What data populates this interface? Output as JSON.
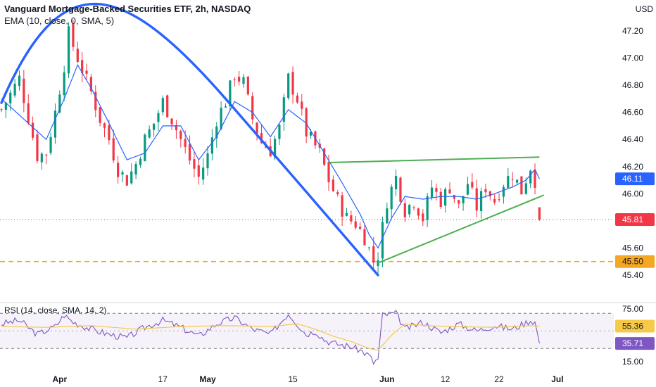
{
  "header": {
    "title": "Vanguard Mortgage-Backed Securities ETF, 2h, NASDAQ",
    "indicator": "EMA (10, close, 0, SMA, 5)",
    "currency": "USD",
    "rsi_label": "RSI (14, close, SMA, 14, 2)"
  },
  "colors": {
    "up": "#089981",
    "down": "#f23645",
    "ema": "#2962ff",
    "arc": "#2962ff",
    "trendline": "#4caf50",
    "support": "#f5a623",
    "rsi": "#7e57c2",
    "rsi_ma": "#f7c948"
  },
  "chart_data": [
    {
      "type": "candlestick",
      "title": "Vanguard Mortgage-Backed Securities ETF, 2h, NASDAQ",
      "ylim": [
        45.3,
        47.3
      ],
      "y_ticks": [
        "47.20",
        "47.00",
        "46.80",
        "46.60",
        "46.40",
        "46.20",
        "46.00",
        "45.60",
        "45.40"
      ],
      "x_ticks": [
        "Apr",
        "17",
        "May",
        "15",
        "Jun",
        "12",
        "22",
        "Jul"
      ],
      "price_labels": [
        {
          "label": "46.11",
          "value": 46.11,
          "kind": "ema"
        },
        {
          "label": "45.81",
          "value": 45.81,
          "kind": "last"
        },
        {
          "label": "45.50",
          "value": 45.5,
          "kind": "support"
        }
      ],
      "support_level": 45.5,
      "series": [
        {
          "name": "EMA (10, close, 0, SMA, 5)",
          "type": "line"
        }
      ],
      "close_path": [
        [
          0,
          46.62
        ],
        [
          4,
          46.85
        ],
        [
          8,
          46.28
        ],
        [
          10,
          46.3
        ],
        [
          12,
          46.6
        ],
        [
          14,
          46.95
        ],
        [
          15,
          47.18
        ],
        [
          17,
          47.0
        ],
        [
          20,
          46.75
        ],
        [
          22,
          46.55
        ],
        [
          24,
          46.4
        ],
        [
          26,
          46.18
        ],
        [
          28,
          46.1
        ],
        [
          30,
          46.22
        ],
        [
          32,
          46.4
        ],
        [
          34,
          46.52
        ],
        [
          36,
          46.68
        ],
        [
          38,
          46.55
        ],
        [
          40,
          46.4
        ],
        [
          42,
          46.25
        ],
        [
          44,
          46.12
        ],
        [
          46,
          46.28
        ],
        [
          48,
          46.55
        ],
        [
          50,
          46.68
        ],
        [
          52,
          46.88
        ],
        [
          54,
          46.82
        ],
        [
          56,
          46.55
        ],
        [
          58,
          46.38
        ],
        [
          60,
          46.32
        ],
        [
          62,
          46.48
        ],
        [
          64,
          46.85
        ],
        [
          66,
          46.7
        ],
        [
          68,
          46.45
        ],
        [
          70,
          46.35
        ],
        [
          71,
          46.3
        ],
        [
          73,
          46.1
        ],
        [
          75,
          45.95
        ],
        [
          77,
          45.82
        ],
        [
          79,
          45.78
        ],
        [
          81,
          45.68
        ],
        [
          83,
          45.5
        ],
        [
          84,
          45.55
        ],
        [
          86,
          45.95
        ],
        [
          88,
          46.12
        ],
        [
          90,
          45.88
        ],
        [
          92,
          45.95
        ],
        [
          94,
          45.82
        ],
        [
          96,
          46.05
        ],
        [
          98,
          45.95
        ],
        [
          100,
          46.05
        ],
        [
          102,
          45.9
        ],
        [
          104,
          46.08
        ],
        [
          106,
          45.9
        ],
        [
          108,
          46.05
        ],
        [
          110,
          45.95
        ],
        [
          112,
          46.08
        ],
        [
          114,
          46.15
        ],
        [
          116,
          46.02
        ],
        [
          118,
          46.2
        ],
        [
          119,
          46.1
        ],
        [
          120,
          45.78
        ]
      ],
      "ema_path": [
        [
          0,
          46.7
        ],
        [
          5,
          46.55
        ],
        [
          10,
          46.4
        ],
        [
          14,
          46.7
        ],
        [
          17,
          46.95
        ],
        [
          20,
          46.78
        ],
        [
          24,
          46.52
        ],
        [
          28,
          46.25
        ],
        [
          32,
          46.3
        ],
        [
          36,
          46.5
        ],
        [
          40,
          46.5
        ],
        [
          44,
          46.25
        ],
        [
          48,
          46.42
        ],
        [
          52,
          46.68
        ],
        [
          56,
          46.6
        ],
        [
          60,
          46.42
        ],
        [
          64,
          46.62
        ],
        [
          68,
          46.52
        ],
        [
          72,
          46.3
        ],
        [
          76,
          46.08
        ],
        [
          80,
          45.85
        ],
        [
          82,
          45.7
        ],
        [
          84,
          45.6
        ],
        [
          87,
          45.82
        ],
        [
          90,
          45.98
        ],
        [
          94,
          45.96
        ],
        [
          98,
          45.98
        ],
        [
          102,
          45.98
        ],
        [
          106,
          45.96
        ],
        [
          110,
          46.0
        ],
        [
          114,
          46.05
        ],
        [
          117,
          46.1
        ],
        [
          119,
          46.18
        ],
        [
          120,
          46.11
        ]
      ],
      "annotations": {
        "arc": {
          "points": [
            [
              0,
              46.67
            ],
            [
              13,
              47.3
            ],
            [
              26,
              47.3
            ],
            [
              50,
              46.7
            ],
            [
              84,
              45.4
            ]
          ]
        },
        "upper_trendline": {
          "from": [
            73,
            46.23
          ],
          "to": [
            120,
            46.27
          ]
        },
        "lower_trendline": {
          "from": [
            84,
            45.49
          ],
          "to": [
            121,
            45.99
          ]
        }
      }
    },
    {
      "type": "line",
      "title": "RSI (14, close, SMA, 14, 2)",
      "ylim": [
        10,
        80
      ],
      "y_ticks": [
        "75.00",
        "15.00"
      ],
      "band": [
        30,
        70
      ],
      "value_labels": [
        {
          "label": "55.36",
          "value": 55.36,
          "kind": "rsi_ma"
        },
        {
          "label": "35.71",
          "value": 35.71,
          "kind": "rsi"
        }
      ],
      "series": [
        {
          "name": "RSI",
          "values": [
            [
              0,
              58
            ],
            [
              4,
              62
            ],
            [
              8,
              46
            ],
            [
              12,
              55
            ],
            [
              14,
              68
            ],
            [
              16,
              60
            ],
            [
              20,
              52
            ],
            [
              24,
              46
            ],
            [
              28,
              42
            ],
            [
              32,
              54
            ],
            [
              36,
              62
            ],
            [
              40,
              54
            ],
            [
              44,
              44
            ],
            [
              48,
              58
            ],
            [
              52,
              65
            ],
            [
              56,
              52
            ],
            [
              60,
              46
            ],
            [
              64,
              70
            ],
            [
              66,
              58
            ],
            [
              68,
              46
            ],
            [
              70,
              50
            ],
            [
              72,
              40
            ],
            [
              74,
              36
            ],
            [
              76,
              34
            ],
            [
              78,
              32
            ],
            [
              80,
              28
            ],
            [
              82,
              22
            ],
            [
              83,
              14
            ],
            [
              84,
              18
            ],
            [
              85,
              68
            ],
            [
              88,
              70
            ],
            [
              90,
              52
            ],
            [
              94,
              60
            ],
            [
              98,
              48
            ],
            [
              102,
              58
            ],
            [
              106,
              50
            ],
            [
              110,
              56
            ],
            [
              114,
              52
            ],
            [
              118,
              62
            ],
            [
              119,
              60
            ],
            [
              120,
              36
            ]
          ]
        },
        {
          "name": "RSI MA",
          "values": [
            [
              0,
              55
            ],
            [
              10,
              54
            ],
            [
              20,
              56
            ],
            [
              30,
              52
            ],
            [
              40,
              55
            ],
            [
              50,
              56
            ],
            [
              60,
              55
            ],
            [
              66,
              58
            ],
            [
              70,
              52
            ],
            [
              74,
              44
            ],
            [
              78,
              38
            ],
            [
              82,
              30
            ],
            [
              84,
              28
            ],
            [
              87,
              45
            ],
            [
              90,
              58
            ],
            [
              95,
              56
            ],
            [
              100,
              55
            ],
            [
              110,
              54
            ],
            [
              118,
              56
            ],
            [
              120,
              55.36
            ]
          ]
        }
      ]
    }
  ]
}
